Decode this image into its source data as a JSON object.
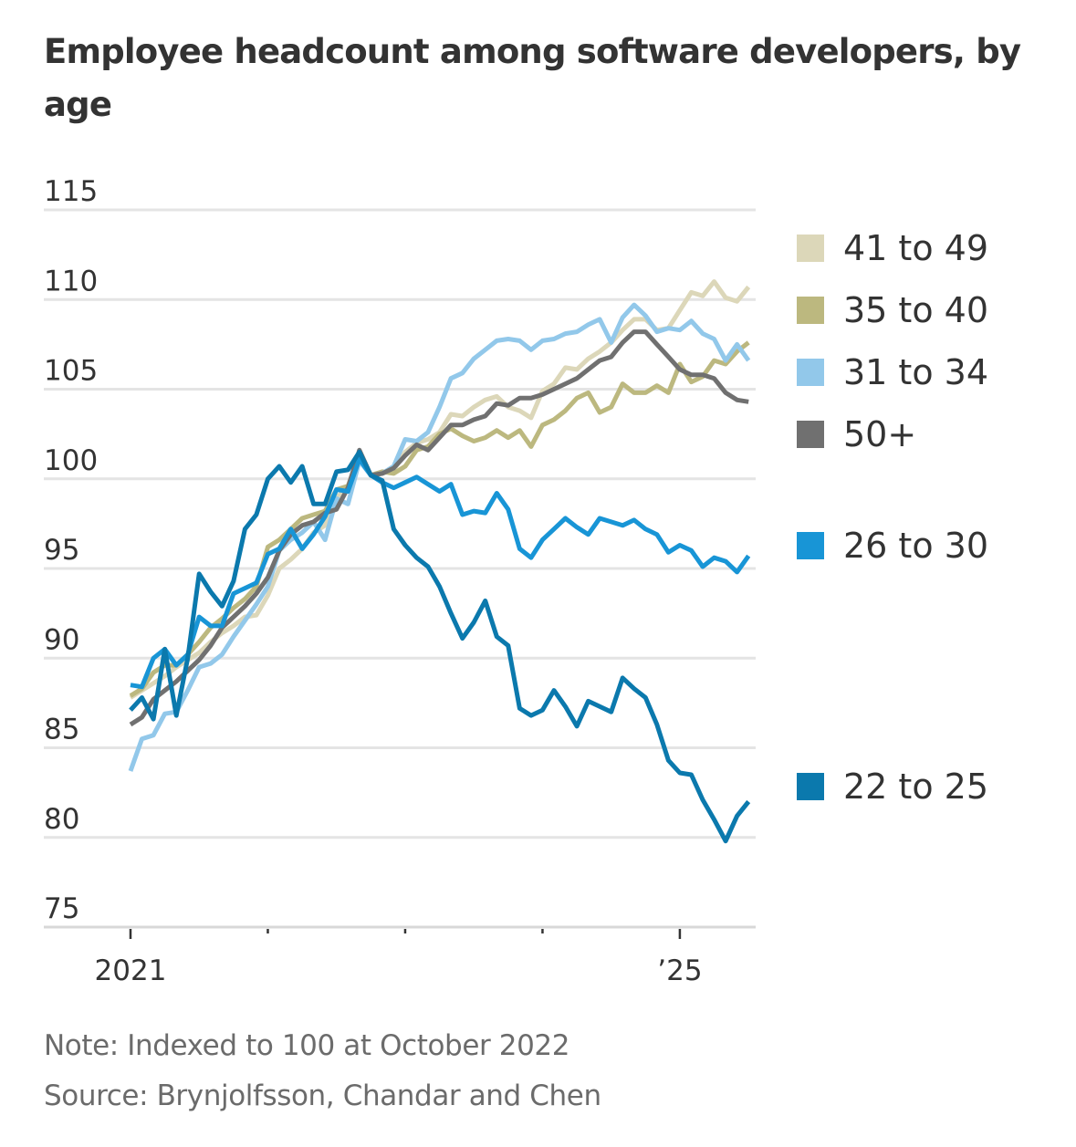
{
  "chart_data": {
    "type": "line",
    "title": "Employee headcount among software developers, by age",
    "xlabel": "",
    "ylabel": "",
    "ylim": [
      75,
      115
    ],
    "yticks": [
      75,
      80,
      85,
      90,
      95,
      100,
      105,
      110,
      115
    ],
    "ytick_labels": [
      "75",
      "80",
      "85",
      "90",
      "95",
      "100",
      "105",
      "110",
      "115"
    ],
    "x_start": "2021-01",
    "x_frequency": "monthly",
    "x_count": 55,
    "xticks": [
      {
        "month_index": 0,
        "label": "2021"
      },
      {
        "month_index": 12,
        "label": ""
      },
      {
        "month_index": 24,
        "label": ""
      },
      {
        "month_index": 36,
        "label": ""
      },
      {
        "month_index": 48,
        "label": "’25"
      }
    ],
    "grid": true,
    "legend_placement": "right",
    "series": [
      {
        "name": "41 to 49",
        "color": "#dcd7b9",
        "values": [
          87.8,
          88.2,
          88.6,
          89.0,
          89.5,
          89.9,
          90.3,
          90.9,
          91.4,
          91.8,
          92.3,
          92.4,
          93.5,
          95.0,
          95.5,
          96.1,
          97.0,
          97.4,
          99.0,
          99.4,
          101.2,
          100.2,
          100.3,
          100.5,
          101.5,
          102.0,
          102.2,
          102.6,
          103.6,
          103.5,
          104.0,
          104.4,
          104.6,
          104.0,
          103.8,
          103.4,
          104.9,
          105.3,
          106.2,
          106.1,
          106.7,
          107.1,
          107.6,
          108.3,
          108.9,
          108.9,
          108.3,
          108.4,
          109.4,
          110.4,
          110.2,
          111.0,
          110.1,
          109.9,
          110.7
        ]
      },
      {
        "name": "35 to 40",
        "color": "#bcb87f",
        "values": [
          87.9,
          88.3,
          89.2,
          89.6,
          89.6,
          90.2,
          90.9,
          91.7,
          92.2,
          92.8,
          93.3,
          94.0,
          96.2,
          96.6,
          97.2,
          97.8,
          98.0,
          98.2,
          99.4,
          99.6,
          101.3,
          100.2,
          100.4,
          100.3,
          100.7,
          101.6,
          101.8,
          102.5,
          102.8,
          102.4,
          102.1,
          102.3,
          102.7,
          102.3,
          102.7,
          101.8,
          103.0,
          103.3,
          103.8,
          104.5,
          104.8,
          103.7,
          104.0,
          105.3,
          104.8,
          104.8,
          105.2,
          104.8,
          106.4,
          105.4,
          105.7,
          106.6,
          106.4,
          107.1,
          107.6
        ]
      },
      {
        "name": "31 to 34",
        "color": "#92c8ea",
        "values": [
          83.7,
          85.5,
          85.7,
          86.9,
          87.0,
          88.2,
          89.5,
          89.7,
          90.2,
          91.2,
          92.1,
          93.0,
          94.0,
          96.0,
          96.6,
          97.0,
          97.6,
          96.6,
          98.9,
          98.6,
          101.0,
          100.2,
          100.3,
          100.7,
          102.2,
          102.1,
          102.6,
          104.0,
          105.6,
          105.9,
          106.7,
          107.2,
          107.7,
          107.8,
          107.7,
          107.2,
          107.7,
          107.8,
          108.1,
          108.2,
          108.6,
          108.9,
          107.6,
          109.0,
          109.7,
          109.1,
          108.2,
          108.4,
          108.3,
          108.8,
          108.1,
          107.8,
          106.6,
          107.5,
          106.6
        ]
      },
      {
        "name": "50+",
        "color": "#707070",
        "values": [
          86.3,
          86.7,
          87.7,
          88.2,
          88.7,
          89.3,
          89.9,
          90.7,
          91.7,
          92.3,
          92.9,
          93.6,
          94.5,
          96.0,
          96.9,
          97.4,
          97.6,
          98.1,
          98.3,
          99.5,
          101.6,
          100.2,
          100.3,
          100.6,
          101.3,
          101.9,
          101.6,
          102.3,
          103.0,
          103.0,
          103.3,
          103.5,
          104.2,
          104.1,
          104.5,
          104.5,
          104.7,
          105.0,
          105.3,
          105.6,
          106.1,
          106.6,
          106.8,
          107.6,
          108.2,
          108.2,
          107.5,
          106.8,
          106.1,
          105.8,
          105.8,
          105.6,
          104.8,
          104.4,
          104.3
        ]
      },
      {
        "name": "26 to 30",
        "color": "#1895d6",
        "values": [
          88.5,
          88.4,
          90.0,
          90.5,
          89.6,
          90.2,
          92.3,
          91.8,
          91.8,
          93.6,
          93.9,
          94.2,
          95.8,
          96.1,
          97.2,
          96.1,
          96.9,
          97.9,
          99.4,
          99.3,
          101.1,
          100.2,
          99.8,
          99.5,
          99.8,
          100.1,
          99.7,
          99.3,
          99.7,
          98.0,
          98.2,
          98.1,
          99.2,
          98.3,
          96.1,
          95.6,
          96.6,
          97.2,
          97.8,
          97.3,
          96.9,
          97.8,
          97.6,
          97.4,
          97.7,
          97.2,
          96.9,
          95.9,
          96.3,
          96.0,
          95.1,
          95.6,
          95.4,
          94.8,
          95.7
        ]
      },
      {
        "name": "22 to 25",
        "color": "#0b79ad",
        "values": [
          87.1,
          87.8,
          86.6,
          90.5,
          86.8,
          90.0,
          94.7,
          93.7,
          92.9,
          94.3,
          97.2,
          98.0,
          100.0,
          100.7,
          99.8,
          100.7,
          98.6,
          98.6,
          100.4,
          100.5,
          101.5,
          100.2,
          99.9,
          97.2,
          96.3,
          95.6,
          95.1,
          94.0,
          92.5,
          91.1,
          92.0,
          93.2,
          91.2,
          90.7,
          87.2,
          86.8,
          87.1,
          88.2,
          87.3,
          86.2,
          87.6,
          87.3,
          87.0,
          88.9,
          88.3,
          87.8,
          86.3,
          84.3,
          83.6,
          83.5,
          82.1,
          81.0,
          79.8,
          81.2,
          82.0
        ]
      }
    ],
    "legend": [
      {
        "label": "41 to 49",
        "color": "#dcd7b9"
      },
      {
        "label": "35 to 40",
        "color": "#bcb87f"
      },
      {
        "label": "31 to 34",
        "color": "#92c8ea"
      },
      {
        "label": "50+",
        "color": "#707070"
      },
      {
        "label": "26 to 30",
        "color": "#1895d6"
      },
      {
        "label": "22 to 25",
        "color": "#0b79ad"
      }
    ],
    "annotations": []
  },
  "header": {
    "title": "Employee headcount among software developers, by age"
  },
  "footer": {
    "note": "Note: Indexed to 100 at October 2022",
    "source": "Source: Brynjolfsson, Chandar and Chen"
  }
}
